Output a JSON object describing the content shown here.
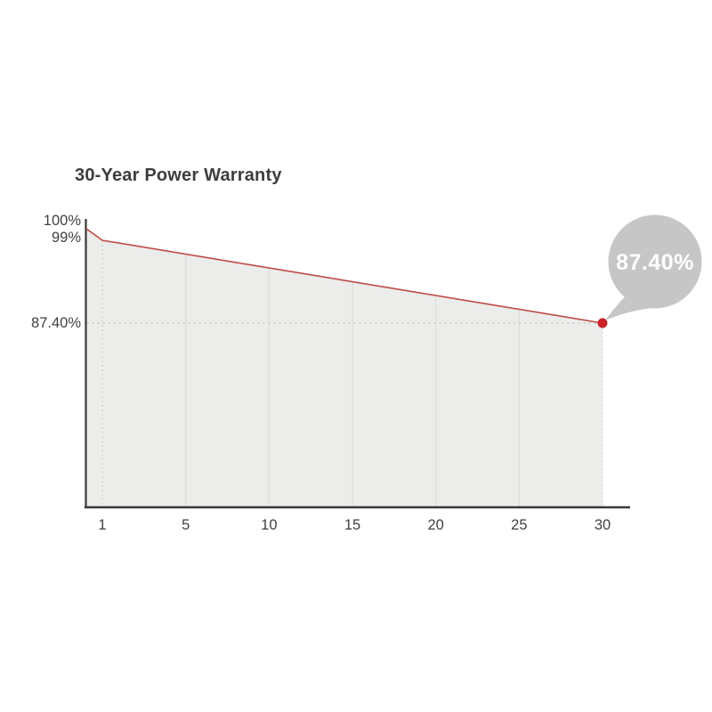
{
  "title": "30-Year Power Warranty",
  "callout": {
    "label": "87.40%"
  },
  "y_axis": {
    "labels": [
      "100%",
      "99%",
      "87.40%"
    ]
  },
  "x_axis": {
    "labels": [
      "1",
      "5",
      "10",
      "15",
      "20",
      "25",
      "30"
    ]
  },
  "chart_data": {
    "type": "area",
    "title": "30-Year Power Warranty",
    "x_ticks": [
      "1",
      "5",
      "10",
      "15",
      "20",
      "25",
      "30"
    ],
    "x_axis_style": "category-evenly-spaced-ticks",
    "xlim": [
      0,
      30
    ],
    "y_ticks": [
      {
        "label": "100%",
        "value": 100
      },
      {
        "label": "99%",
        "value": 99
      },
      {
        "label": "87.40%",
        "value": 87.4
      }
    ],
    "series": [
      {
        "points": [
          [
            0,
            100
          ],
          [
            1,
            99
          ],
          [
            30,
            87.4
          ]
        ],
        "interpolation": "linear"
      }
    ],
    "end_annotation": {
      "x": 30,
      "value": 87.4,
      "label": "87.40%"
    },
    "grid": "vertical-lines-at-5-year-ticks, dashed-guide-at-year-1-and-87.40%-level",
    "legend": "none",
    "colors": {
      "line": "#bf4b45",
      "dot": "#cb2127",
      "area": "#ececea",
      "grid": "#d9d9d7",
      "dash": "#c9c9c7",
      "axis": "#383838",
      "label": "#414141",
      "bubble": "#c6c6c6",
      "bubble_text": "#ffffff",
      "title": "#3d3d3d"
    }
  }
}
